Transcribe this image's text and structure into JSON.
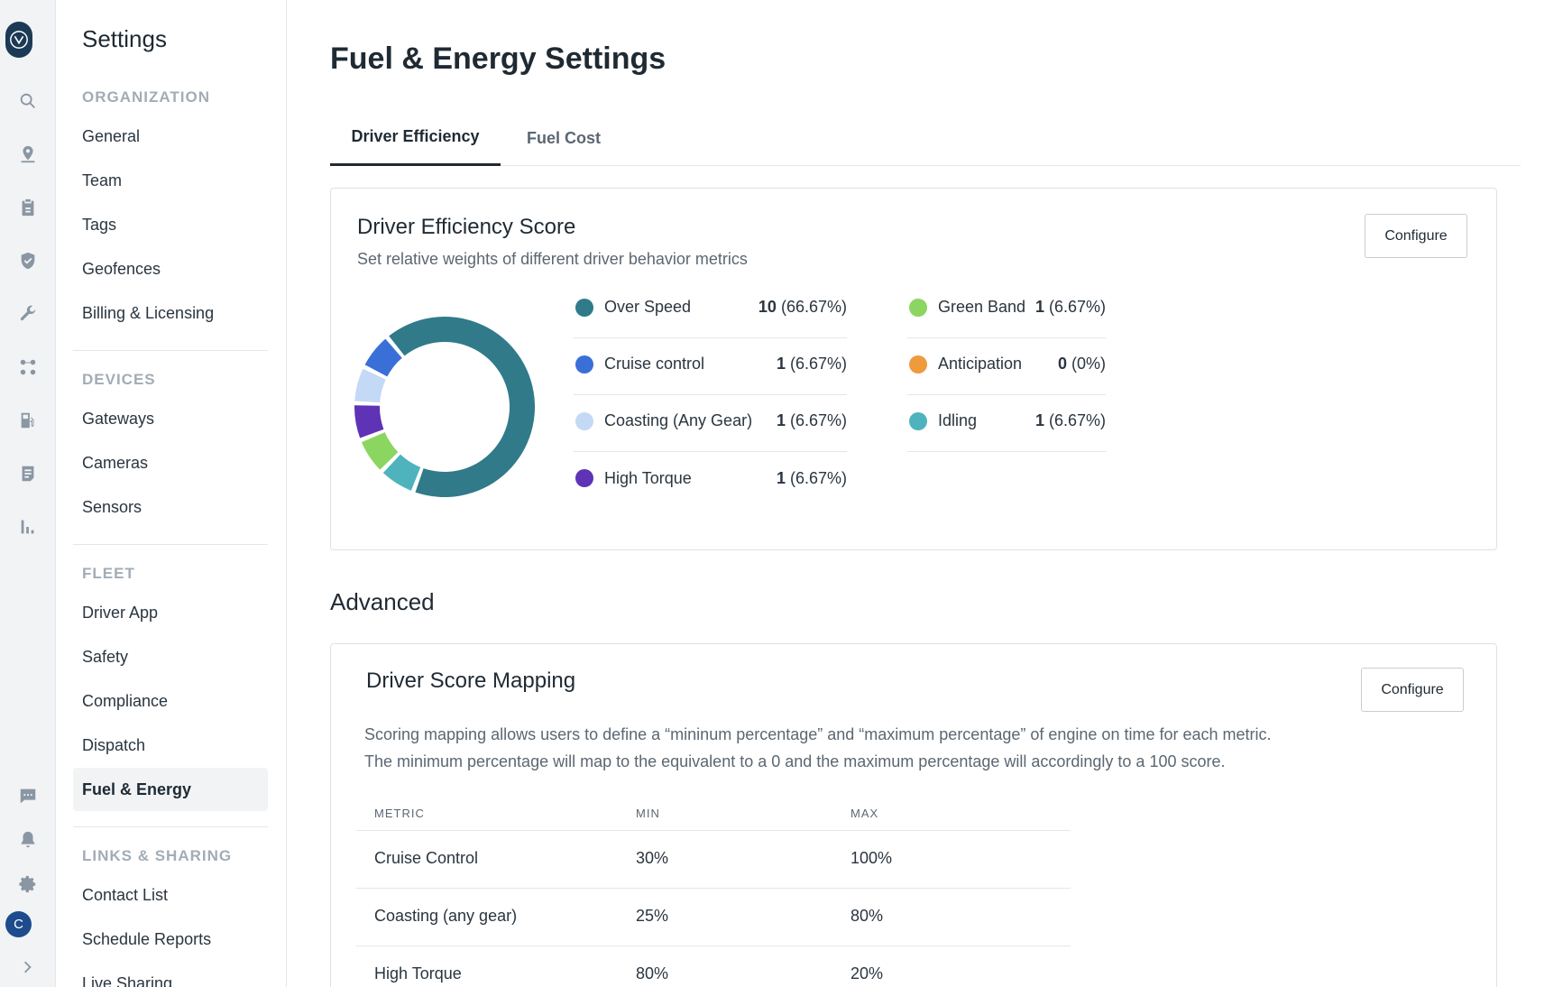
{
  "sidebar": {
    "title": "Settings",
    "sections": [
      {
        "header": "ORGANIZATION",
        "items": [
          "General",
          "Team",
          "Tags",
          "Geofences",
          "Billing & Licensing"
        ]
      },
      {
        "header": "DEVICES",
        "items": [
          "Gateways",
          "Cameras",
          "Sensors"
        ]
      },
      {
        "header": "FLEET",
        "items": [
          "Driver App",
          "Safety",
          "Compliance",
          "Dispatch",
          "Fuel & Energy"
        ]
      },
      {
        "header": "LINKS & SHARING",
        "items": [
          "Contact List",
          "Schedule Reports",
          "Live Sharing"
        ]
      }
    ],
    "active_item": "Fuel & Energy"
  },
  "rail": {
    "avatar_initial": "C",
    "icons": [
      "search-icon",
      "map-pin-icon",
      "clipboard-icon",
      "shield-icon",
      "wrench-icon",
      "routes-icon",
      "fuel-pump-icon",
      "document-icon",
      "bar-chart-icon",
      "chat-icon",
      "bell-icon",
      "gear-icon",
      "chevron-right-icon"
    ]
  },
  "page": {
    "title": "Fuel & Energy Settings",
    "tabs": [
      "Driver Efficiency",
      "Fuel Cost"
    ],
    "active_tab": "Driver Efficiency"
  },
  "efficiency_card": {
    "title": "Driver Efficiency Score",
    "subtitle": "Set relative weights of different driver behavior metrics",
    "configure_label": "Configure",
    "metrics": [
      {
        "name": "Over Speed",
        "weight": "10",
        "pct": "(66.67%)",
        "value": 10,
        "color": "#317a8a"
      },
      {
        "name": "Cruise control",
        "weight": "1",
        "pct": "(6.67%)",
        "value": 1,
        "color": "#3a6fd8"
      },
      {
        "name": "Coasting (Any Gear)",
        "weight": "1",
        "pct": "(6.67%)",
        "value": 1,
        "color": "#c4d9f5"
      },
      {
        "name": "High Torque",
        "weight": "1",
        "pct": "(6.67%)",
        "value": 1,
        "color": "#5e33b6"
      },
      {
        "name": "Green Band",
        "weight": "1",
        "pct": "(6.67%)",
        "value": 1,
        "color": "#8bd561"
      },
      {
        "name": "Anticipation",
        "weight": "0",
        "pct": "(0%)",
        "value": 0,
        "color": "#ef9a3d"
      },
      {
        "name": "Idling",
        "weight": "1",
        "pct": "(6.67%)",
        "value": 1,
        "color": "#4fb3bd"
      }
    ]
  },
  "advanced": {
    "heading": "Advanced"
  },
  "mapping_card": {
    "title": "Driver Score Mapping",
    "configure_label": "Configure",
    "description_line1": "Scoring mapping allows users to define a “mininum percentage” and “maximum percentage” of engine on time for each metric.",
    "description_line2": "The minimum percentage will map to the equivalent to a 0 and the maximum percentage will accordingly to a 100 score.",
    "columns": [
      "METRIC",
      "MIN",
      "MAX"
    ],
    "rows": [
      [
        "Cruise Control",
        "30%",
        "100%"
      ],
      [
        "Coasting (any gear)",
        "25%",
        "80%"
      ],
      [
        "High Torque",
        "80%",
        "20%"
      ]
    ]
  }
}
